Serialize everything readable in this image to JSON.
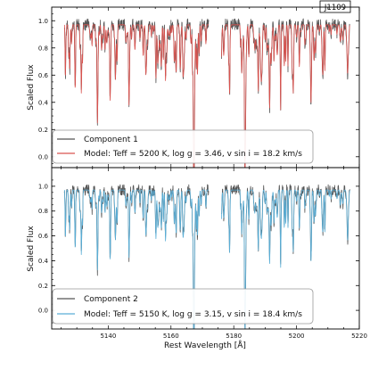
{
  "chart_data": {
    "type": "line",
    "tag": "J1109",
    "xlabel": "Rest Wavelength [Å]",
    "xlim": [
      5122,
      5220
    ],
    "x_ticks": [
      5140,
      5160,
      5180,
      5200,
      5220
    ],
    "gap": [
      5172,
      5176
    ],
    "panels": [
      {
        "ylabel": "Scaled Flux",
        "ylim": [
          -0.08,
          1.1
        ],
        "y_ticks": [
          "0.0",
          "0.2",
          "0.4",
          "0.6",
          "0.8",
          "1.0"
        ],
        "y_tick_values": [
          0.0,
          0.2,
          0.4,
          0.6,
          0.8,
          1.0
        ],
        "legend_position": "lower-left",
        "series": [
          {
            "name": "Component 1",
            "color": "#555555"
          },
          {
            "name": "Model: T_eff = 5200 K, log g = 3.46, v sin i = 18.2 km/s",
            "color": "#d9534f"
          }
        ],
        "legend": [
          "Component 1",
          "Model: Teff = 5200 K, log g = 3.46, v sin i = 18.2 km/s"
        ],
        "lines": [
          {
            "x": 5136.6,
            "depth": 0.58
          },
          {
            "x": 5167.3,
            "depth": 0.85
          },
          {
            "x": 5172.7,
            "depth": 0.38
          },
          {
            "x": 5183.6,
            "depth": 0.9
          },
          {
            "x": 5146.7,
            "depth": 0.4
          },
          {
            "x": 5188.7,
            "depth": 0.35
          },
          {
            "x": 5204.6,
            "depth": 0.42
          },
          {
            "x": 5208.4,
            "depth": 0.35
          },
          {
            "x": 5198.7,
            "depth": 0.3
          },
          {
            "x": 5155.8,
            "depth": 0.28
          },
          {
            "x": 5131.5,
            "depth": 0.28
          },
          {
            "x": 5191.5,
            "depth": 0.3
          },
          {
            "x": 5216.3,
            "depth": 0.33
          }
        ]
      },
      {
        "ylabel": "Scaled Flux",
        "ylim": [
          -0.15,
          1.15
        ],
        "y_ticks": [
          "0.0",
          "0.2",
          "0.4",
          "0.6",
          "0.8",
          "1.0"
        ],
        "y_tick_values": [
          0.0,
          0.2,
          0.4,
          0.6,
          0.8,
          1.0
        ],
        "legend_position": "lower-left",
        "series": [
          {
            "name": "Component 2",
            "color": "#555555"
          },
          {
            "name": "Model: T_eff = 5150 K, log g = 3.15, v sin i = 18.4 km/s",
            "color": "#5aaed6"
          }
        ],
        "legend": [
          "Component 2",
          "Model: Teff = 5150 K, log g = 3.15, v sin i = 18.4 km/s"
        ],
        "lines": [
          {
            "x": 5136.6,
            "depth": 0.5
          },
          {
            "x": 5167.3,
            "depth": 0.97
          },
          {
            "x": 5172.7,
            "depth": 0.4
          },
          {
            "x": 5183.6,
            "depth": 0.95
          },
          {
            "x": 5146.7,
            "depth": 0.35
          },
          {
            "x": 5188.7,
            "depth": 0.32
          },
          {
            "x": 5204.6,
            "depth": 0.42
          },
          {
            "x": 5208.4,
            "depth": 0.32
          },
          {
            "x": 5198.7,
            "depth": 0.28
          },
          {
            "x": 5155.8,
            "depth": 0.3
          },
          {
            "x": 5131.5,
            "depth": 0.3
          },
          {
            "x": 5191.5,
            "depth": 0.28
          },
          {
            "x": 5216.3,
            "depth": 0.38
          }
        ]
      }
    ]
  }
}
